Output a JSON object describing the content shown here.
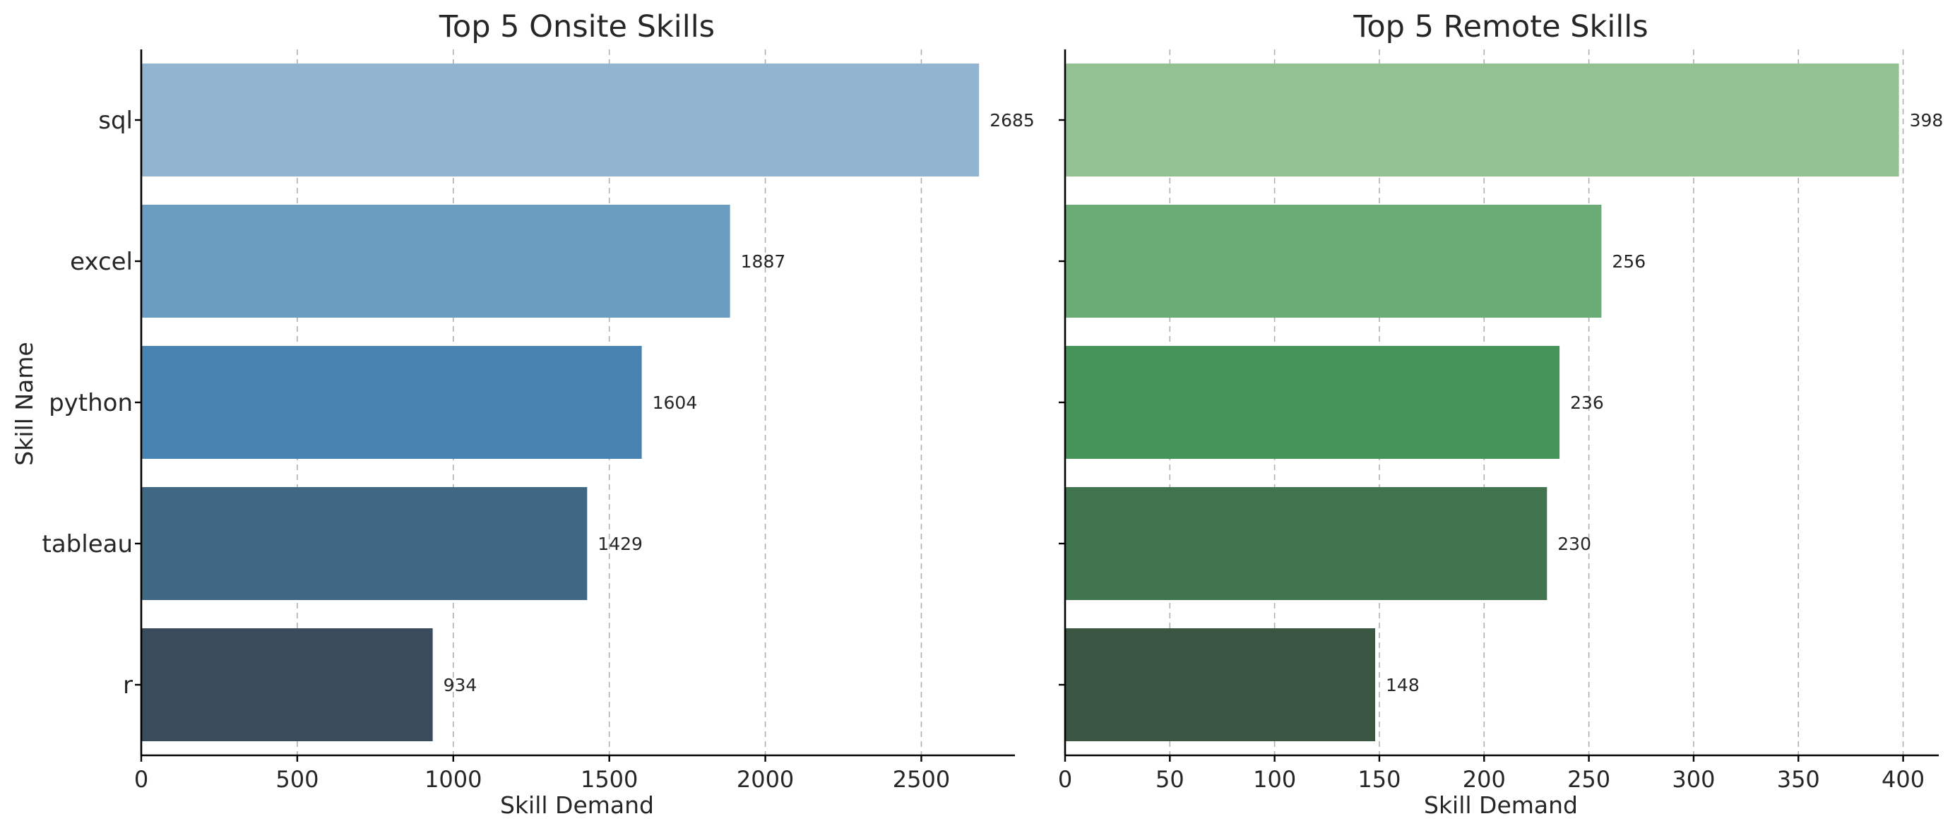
{
  "chart_data": [
    {
      "type": "bar",
      "orientation": "horizontal",
      "title": "Top 5 Onsite Skills",
      "xlabel": "Skill Demand",
      "ylabel": "Skill Name",
      "categories": [
        "sql",
        "excel",
        "python",
        "tableau",
        "r"
      ],
      "values": [
        2685,
        1887,
        1604,
        1429,
        934
      ],
      "data_labels": [
        "2685",
        "1887",
        "1604",
        "1429",
        "934"
      ],
      "xlim": [
        0,
        2800
      ],
      "xticks": [
        0,
        500,
        1000,
        1500,
        2000,
        2500
      ],
      "xtick_labels": [
        "0",
        "500",
        "1000",
        "1500",
        "2000",
        "2500"
      ],
      "grid": "x-dashed",
      "colors": [
        "#91b5d0",
        "#6b9dc0",
        "#4883b1",
        "#406783",
        "#3a4c5c"
      ]
    },
    {
      "type": "bar",
      "orientation": "horizontal",
      "title": "Top 5 Remote Skills",
      "xlabel": "Skill Demand",
      "ylabel": "",
      "categories": [
        "sql",
        "excel",
        "python",
        "tableau",
        "r"
      ],
      "values": [
        398,
        256,
        236,
        230,
        148
      ],
      "data_labels": [
        "398",
        "256",
        "236",
        "230",
        "148"
      ],
      "xlim": [
        0,
        417
      ],
      "xticks": [
        0,
        50,
        100,
        150,
        200,
        250,
        300,
        350,
        400
      ],
      "xtick_labels": [
        "0",
        "50",
        "100",
        "150",
        "200",
        "250",
        "300",
        "350",
        "400"
      ],
      "show_category_labels": false,
      "grid": "x-dashed",
      "colors": [
        "#92c293",
        "#6bab75",
        "#46945a",
        "#40744e",
        "#3a5542"
      ]
    }
  ]
}
